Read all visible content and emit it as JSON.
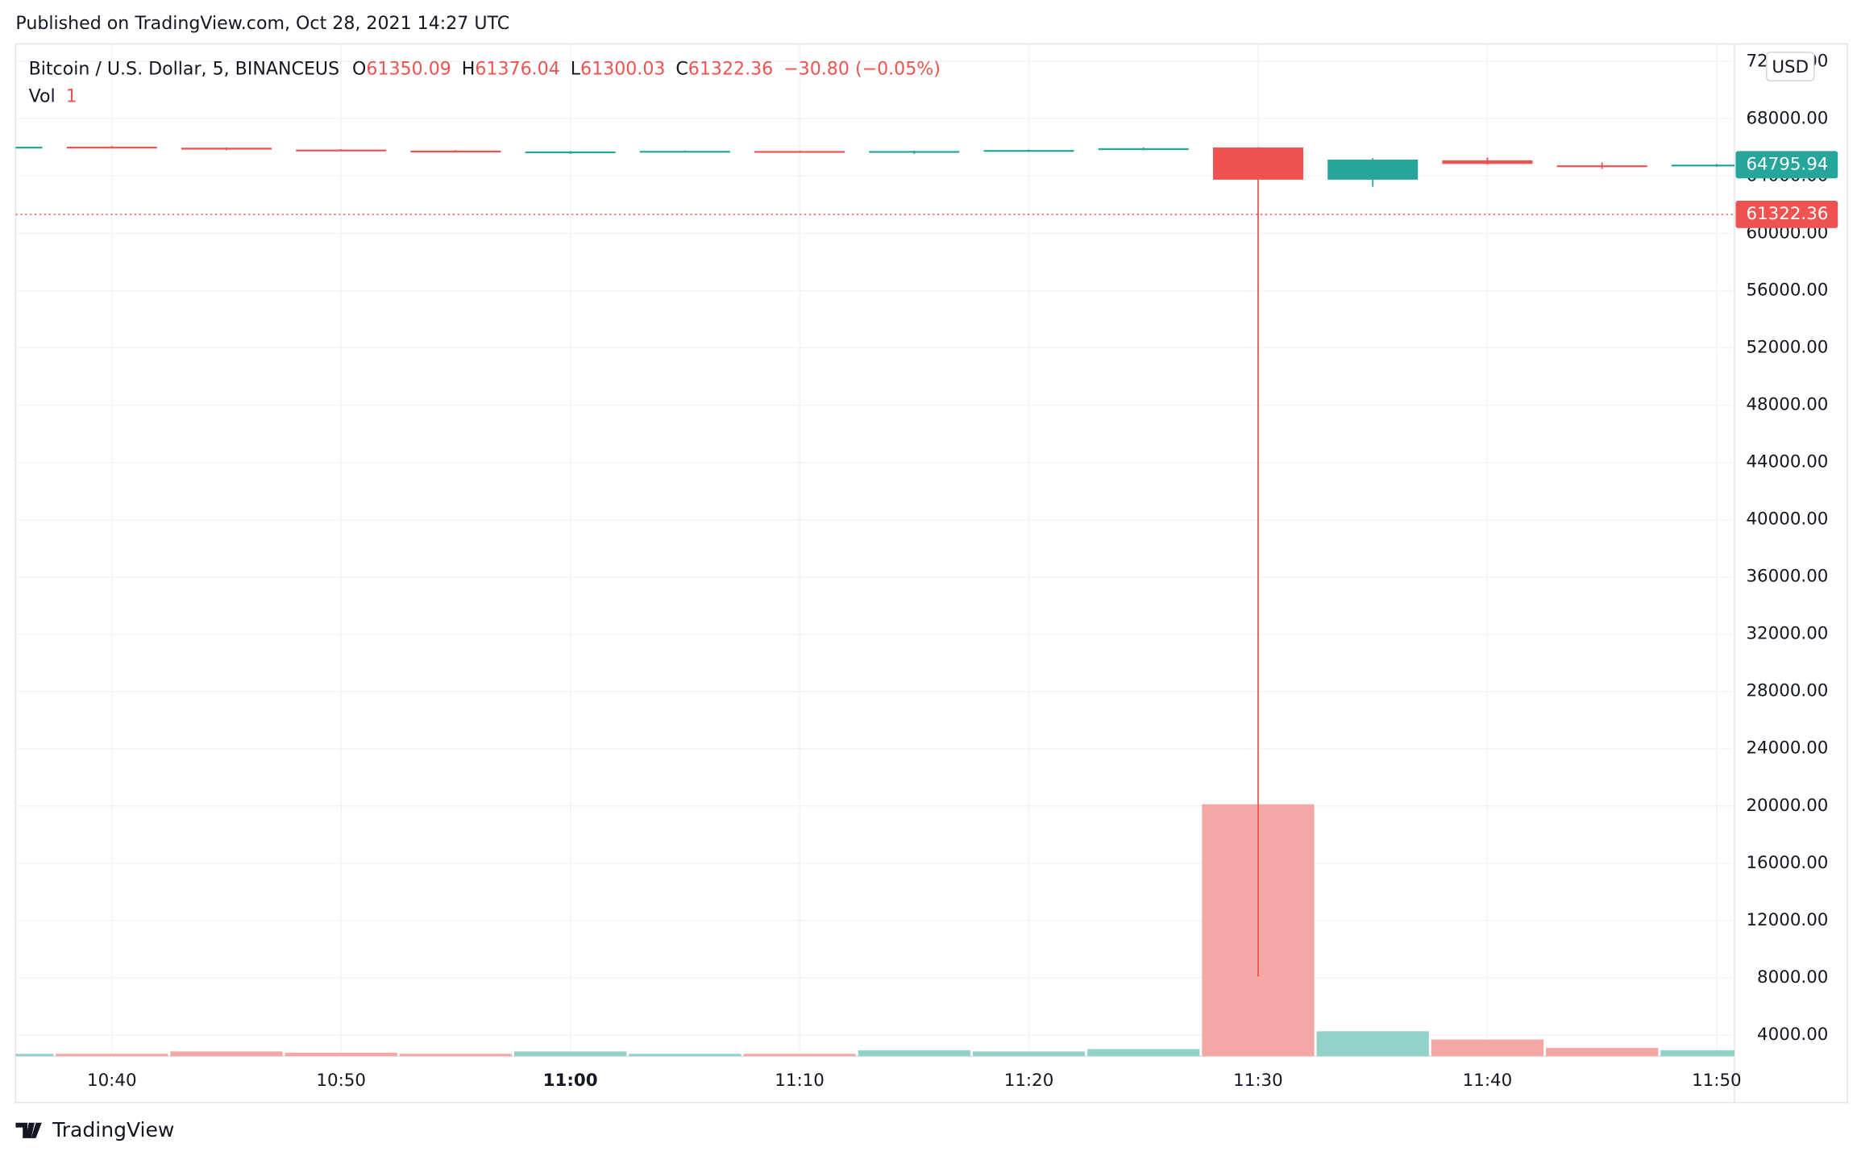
{
  "header": {
    "published": "Published on TradingView.com, Oct 28, 2021 14:27 UTC",
    "symbol": "Bitcoin / U.S. Dollar, 5, BINANCEUS",
    "open_key": "O",
    "open": "61350.09",
    "high_key": "H",
    "high": "61376.04",
    "low_key": "L",
    "low": "61300.03",
    "close_key": "C",
    "close": "61322.36",
    "change": "−30.80 (−0.05%)",
    "volume_key": "Vol",
    "volume": "1",
    "currency": "USD"
  },
  "footer": {
    "brand": "TradingView"
  },
  "chart_data": {
    "type": "candlestick",
    "categories": [
      null,
      "10:40",
      null,
      "10:50",
      null,
      "11:00",
      null,
      "11:10",
      null,
      "11:20",
      null,
      "11:30",
      null,
      "11:40",
      null,
      "11:50"
    ],
    "open": [
      65950,
      66050,
      65980,
      65850,
      65780,
      65650,
      65700,
      65750,
      65680,
      65750,
      65820,
      66000,
      63750,
      65100,
      64750,
      64700
    ],
    "high": [
      66080,
      66100,
      66000,
      65880,
      65820,
      65750,
      65790,
      65780,
      65780,
      65850,
      66000,
      66020,
      65250,
      65300,
      64950,
      64850
    ],
    "low": [
      65920,
      65950,
      65800,
      65750,
      65680,
      65550,
      65650,
      65680,
      65550,
      65700,
      65800,
      8100,
      63250,
      64800,
      64500,
      64650
    ],
    "close": [
      66050,
      65980,
      65850,
      65780,
      65700,
      65720,
      65760,
      65700,
      65750,
      65820,
      65950,
      63750,
      65150,
      64850,
      64700,
      64800
    ],
    "volume": [
      2,
      2,
      4,
      3,
      2,
      4,
      2,
      2,
      5,
      4,
      6,
      212,
      21,
      14,
      7,
      5
    ],
    "volume_ylim": [
      0,
      852
    ],
    "up_color": "#26a69a",
    "down_color": "#ef5350",
    "volume_up_color": "#93d2c9",
    "volume_down_color": "#f5a7a5",
    "ylim": [
      2520,
      73230
    ],
    "yticks": [
      {
        "value": 4000,
        "label": "4000.00"
      },
      {
        "value": 8000,
        "label": "8000.00"
      },
      {
        "value": 12000,
        "label": "12000.00"
      },
      {
        "value": 16000,
        "label": "16000.00"
      },
      {
        "value": 20000,
        "label": "20000.00"
      },
      {
        "value": 24000,
        "label": "24000.00"
      },
      {
        "value": 28000,
        "label": "28000.00"
      },
      {
        "value": 32000,
        "label": "32000.00"
      },
      {
        "value": 36000,
        "label": "36000.00"
      },
      {
        "value": 40000,
        "label": "40000.00"
      },
      {
        "value": 44000,
        "label": "44000.00"
      },
      {
        "value": 48000,
        "label": "48000.00"
      },
      {
        "value": 52000,
        "label": "52000.00"
      },
      {
        "value": 56000,
        "label": "56000.00"
      },
      {
        "value": 60000,
        "label": "60000.00"
      },
      {
        "value": 64000,
        "label": "64000.00"
      },
      {
        "value": 68000,
        "label": "68000.00"
      },
      {
        "value": 72000,
        "label": "72000.00"
      }
    ],
    "price_markers": [
      {
        "value": 64795.94,
        "label": "64795.94",
        "color": "#26a69a"
      },
      {
        "value": 61322.36,
        "label": "61322.36",
        "color": "#ef5350"
      }
    ],
    "bold_category": "11:00",
    "grid": true
  }
}
